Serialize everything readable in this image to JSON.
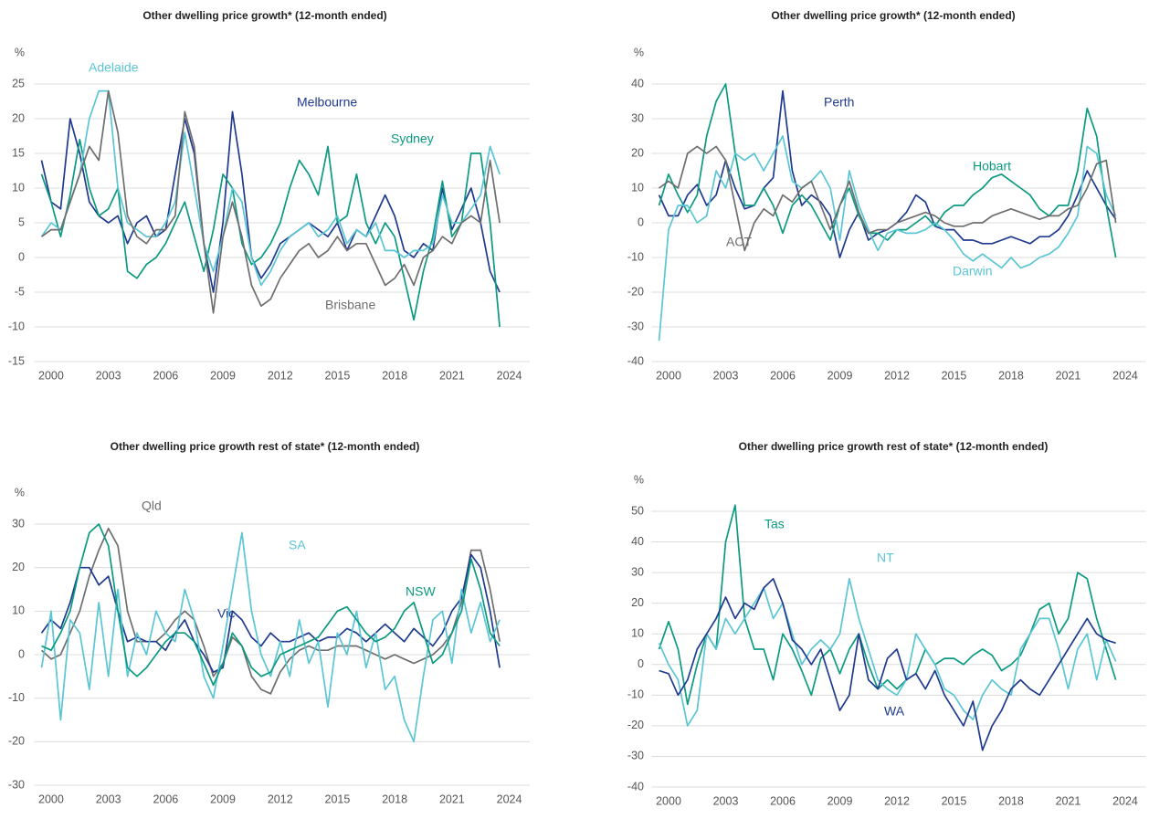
{
  "chart_data": [
    {
      "type": "line",
      "title": "Other dwelling price growth* (12-month ended)",
      "y_unit": "%",
      "x": [
        1999.5,
        2000,
        2000.5,
        2001,
        2001.5,
        2002,
        2002.5,
        2003,
        2003.5,
        2004,
        2004.5,
        2005,
        2005.5,
        2006,
        2006.5,
        2007,
        2007.5,
        2008,
        2008.5,
        2009,
        2009.5,
        2010,
        2010.5,
        2011,
        2011.5,
        2012,
        2012.5,
        2013,
        2013.5,
        2014,
        2014.5,
        2015,
        2015.5,
        2016,
        2016.5,
        2017,
        2017.5,
        2018,
        2018.5,
        2019,
        2019.5,
        2020,
        2020.5,
        2021,
        2021.5,
        2022,
        2022.5,
        2023,
        2023.5
      ],
      "xlim": [
        1999.5,
        2024.5
      ],
      "xticks": [
        2000,
        2003,
        2006,
        2009,
        2012,
        2015,
        2018,
        2021,
        2024
      ],
      "ylim": [
        -15,
        25
      ],
      "yticks": [
        -15,
        -10,
        -5,
        0,
        5,
        10,
        15,
        20,
        25
      ],
      "grid": true,
      "series": [
        {
          "name": "Melbourne",
          "color": "#1f3a8f",
          "values": [
            14,
            8,
            7,
            20,
            15,
            8,
            6,
            5,
            6,
            2,
            5,
            6,
            3,
            4,
            12,
            20,
            15,
            2,
            -5,
            5,
            21,
            12,
            0,
            -3,
            -1,
            2,
            3,
            4,
            5,
            4,
            3,
            5,
            1,
            4,
            3,
            6,
            9,
            6,
            1,
            0,
            2,
            1,
            10,
            4,
            7,
            10,
            5,
            -2,
            -5
          ]
        },
        {
          "name": "Sydney",
          "color": "#0b9a80",
          "values": [
            12,
            8,
            3,
            9,
            17,
            10,
            6,
            7,
            10,
            -2,
            -3,
            -1,
            0,
            2,
            5,
            8,
            3,
            -2,
            4,
            12,
            10,
            2,
            -1,
            0,
            2,
            5,
            10,
            14,
            12,
            9,
            16,
            5,
            6,
            12,
            5,
            2,
            5,
            3,
            -3,
            -9,
            -2,
            3,
            11,
            3,
            5,
            15,
            15,
            5,
            -10
          ]
        },
        {
          "name": "Adelaide",
          "color": "#5ac5d4",
          "values": [
            3,
            5,
            4,
            8,
            12,
            20,
            24,
            24,
            10,
            5,
            4,
            3,
            3,
            5,
            8,
            18,
            10,
            2,
            -2,
            3,
            10,
            8,
            0,
            -4,
            -2,
            1,
            3,
            4,
            5,
            3,
            4,
            6,
            2,
            4,
            3,
            5,
            1,
            1,
            0,
            1,
            1,
            2,
            9,
            5,
            5,
            7,
            9,
            16,
            12
          ]
        },
        {
          "name": "Brisbane",
          "color": "#6e6e6e",
          "values": [
            3,
            4,
            4,
            8,
            12,
            16,
            14,
            24,
            18,
            6,
            3,
            2,
            4,
            4,
            6,
            21,
            16,
            2,
            -8,
            3,
            8,
            3,
            -4,
            -7,
            -6,
            -3,
            -1,
            1,
            2,
            0,
            1,
            3,
            1,
            2,
            2,
            -1,
            -4,
            -3,
            -1,
            -4,
            0,
            1,
            3,
            2,
            5,
            6,
            5,
            14,
            5
          ]
        }
      ]
    },
    {
      "type": "line",
      "title": "Other dwelling price growth* (12-month ended)",
      "y_unit": "%",
      "x": [
        1999.5,
        2000,
        2000.5,
        2001,
        2001.5,
        2002,
        2002.5,
        2003,
        2003.5,
        2004,
        2004.5,
        2005,
        2005.5,
        2006,
        2006.5,
        2007,
        2007.5,
        2008,
        2008.5,
        2009,
        2009.5,
        2010,
        2010.5,
        2011,
        2011.5,
        2012,
        2012.5,
        2013,
        2013.5,
        2014,
        2014.5,
        2015,
        2015.5,
        2016,
        2016.5,
        2017,
        2017.5,
        2018,
        2018.5,
        2019,
        2019.5,
        2020,
        2020.5,
        2021,
        2021.5,
        2022,
        2022.5,
        2023,
        2023.5
      ],
      "xlim": [
        1999.5,
        2024.5
      ],
      "xticks": [
        2000,
        2003,
        2006,
        2009,
        2012,
        2015,
        2018,
        2021,
        2024
      ],
      "ylim": [
        -40,
        40
      ],
      "yticks": [
        -40,
        -30,
        -20,
        -10,
        0,
        10,
        20,
        30,
        40
      ],
      "grid": true,
      "series": [
        {
          "name": "Perth",
          "color": "#1f3a8f",
          "values": [
            8,
            2,
            2,
            8,
            11,
            5,
            8,
            18,
            10,
            4,
            5,
            10,
            13,
            38,
            15,
            5,
            8,
            6,
            2,
            -10,
            -2,
            3,
            -5,
            -3,
            -2,
            0,
            3,
            8,
            6,
            -1,
            -2,
            -2,
            -5,
            -5,
            -6,
            -6,
            -5,
            -4,
            -5,
            -6,
            -4,
            -4,
            -2,
            2,
            8,
            15,
            10,
            5,
            1
          ]
        },
        {
          "name": "Hobart",
          "color": "#0b9a80",
          "values": [
            5,
            14,
            8,
            3,
            8,
            25,
            35,
            40,
            20,
            5,
            5,
            10,
            5,
            -3,
            5,
            8,
            5,
            0,
            -5,
            5,
            10,
            2,
            -3,
            -3,
            -5,
            -2,
            -2,
            0,
            2,
            -1,
            3,
            5,
            5,
            8,
            10,
            13,
            14,
            12,
            10,
            8,
            4,
            2,
            5,
            5,
            15,
            33,
            25,
            5,
            -10
          ]
        },
        {
          "name": "Darwin",
          "color": "#5ac5d4",
          "values": [
            -34,
            -2,
            5,
            5,
            0,
            2,
            15,
            10,
            20,
            18,
            20,
            15,
            20,
            25,
            12,
            10,
            12,
            15,
            10,
            -5,
            15,
            5,
            -2,
            -8,
            -3,
            -2,
            -3,
            -3,
            -2,
            0,
            -2,
            -5,
            -9,
            -11,
            -9,
            -11,
            -13,
            -10,
            -13,
            -12,
            -10,
            -9,
            -7,
            -3,
            2,
            22,
            20,
            8,
            2
          ]
        },
        {
          "name": "ACT",
          "color": "#6e6e6e",
          "values": [
            10,
            12,
            10,
            20,
            22,
            20,
            22,
            18,
            5,
            -8,
            0,
            4,
            2,
            8,
            6,
            10,
            12,
            5,
            -2,
            5,
            12,
            3,
            -3,
            -2,
            -2,
            0,
            1,
            2,
            3,
            2,
            0,
            -1,
            -1,
            0,
            0,
            2,
            3,
            4,
            3,
            2,
            1,
            2,
            2,
            4,
            5,
            10,
            17,
            18,
            0
          ]
        }
      ]
    },
    {
      "type": "line",
      "title": "Other dwelling price growth rest of state* (12-month ended)",
      "y_unit": "%",
      "x": [
        1999.5,
        2000,
        2000.5,
        2001,
        2001.5,
        2002,
        2002.5,
        2003,
        2003.5,
        2004,
        2004.5,
        2005,
        2005.5,
        2006,
        2006.5,
        2007,
        2007.5,
        2008,
        2008.5,
        2009,
        2009.5,
        2010,
        2010.5,
        2011,
        2011.5,
        2012,
        2012.5,
        2013,
        2013.5,
        2014,
        2014.5,
        2015,
        2015.5,
        2016,
        2016.5,
        2017,
        2017.5,
        2018,
        2018.5,
        2019,
        2019.5,
        2020,
        2020.5,
        2021,
        2021.5,
        2022,
        2022.5,
        2023,
        2023.5
      ],
      "xlim": [
        1999.5,
        2024.5
      ],
      "xticks": [
        2000,
        2003,
        2006,
        2009,
        2012,
        2015,
        2018,
        2021,
        2024
      ],
      "ylim": [
        -30,
        30
      ],
      "yticks": [
        -30,
        -20,
        -10,
        0,
        10,
        20,
        30
      ],
      "grid": true,
      "series": [
        {
          "name": "Qld",
          "color": "#6e6e6e",
          "values": [
            1,
            -1,
            0,
            5,
            10,
            18,
            24,
            29,
            25,
            10,
            3,
            3,
            3,
            5,
            8,
            10,
            8,
            2,
            -5,
            -2,
            4,
            2,
            -5,
            -8,
            -9,
            -4,
            -1,
            1,
            2,
            1,
            1,
            2,
            2,
            2,
            1,
            0,
            -1,
            0,
            -1,
            -2,
            -1,
            0,
            2,
            5,
            12,
            24,
            24,
            15,
            3
          ]
        },
        {
          "name": "Vic",
          "color": "#1f3a8f",
          "values": [
            5,
            8,
            6,
            12,
            20,
            20,
            16,
            18,
            10,
            3,
            4,
            3,
            3,
            1,
            5,
            8,
            3,
            0,
            -4,
            -3,
            10,
            8,
            4,
            2,
            5,
            3,
            3,
            4,
            5,
            3,
            4,
            4,
            6,
            5,
            3,
            5,
            7,
            5,
            3,
            6,
            4,
            2,
            5,
            10,
            13,
            23,
            20,
            10,
            -3
          ]
        },
        {
          "name": "SA",
          "color": "#5ac5d4",
          "values": [
            -3,
            10,
            -15,
            8,
            5,
            -8,
            12,
            -5,
            15,
            -5,
            5,
            0,
            10,
            5,
            3,
            15,
            8,
            -5,
            -10,
            2,
            15,
            28,
            10,
            0,
            -5,
            3,
            -5,
            8,
            -2,
            3,
            -12,
            5,
            0,
            10,
            -3,
            5,
            -8,
            -5,
            -15,
            -20,
            -5,
            8,
            10,
            -2,
            15,
            5,
            12,
            3,
            8
          ]
        },
        {
          "name": "NSW",
          "color": "#0b9a80",
          "values": [
            2,
            1,
            5,
            10,
            20,
            28,
            30,
            25,
            10,
            -3,
            -5,
            -3,
            0,
            3,
            5,
            5,
            3,
            -2,
            -7,
            -2,
            5,
            2,
            -3,
            -5,
            -4,
            0,
            1,
            2,
            3,
            4,
            7,
            10,
            11,
            8,
            5,
            3,
            4,
            6,
            10,
            12,
            5,
            -2,
            0,
            5,
            10,
            22,
            15,
            5,
            2
          ]
        }
      ]
    },
    {
      "type": "line",
      "title": "Other dwelling price growth rest of state* (12-month ended)",
      "y_unit": "%",
      "x": [
        1999.5,
        2000,
        2000.5,
        2001,
        2001.5,
        2002,
        2002.5,
        2003,
        2003.5,
        2004,
        2004.5,
        2005,
        2005.5,
        2006,
        2006.5,
        2007,
        2007.5,
        2008,
        2008.5,
        2009,
        2009.5,
        2010,
        2010.5,
        2011,
        2011.5,
        2012,
        2012.5,
        2013,
        2013.5,
        2014,
        2014.5,
        2015,
        2015.5,
        2016,
        2016.5,
        2017,
        2017.5,
        2018,
        2018.5,
        2019,
        2019.5,
        2020,
        2020.5,
        2021,
        2021.5,
        2022,
        2022.5,
        2023,
        2023.5
      ],
      "xlim": [
        1999.5,
        2024.5
      ],
      "xticks": [
        2000,
        2003,
        2006,
        2009,
        2012,
        2015,
        2018,
        2021,
        2024
      ],
      "ylim": [
        -40,
        50
      ],
      "yticks": [
        -40,
        -30,
        -20,
        -10,
        0,
        10,
        20,
        30,
        40,
        50
      ],
      "grid": true,
      "series": [
        {
          "name": "Tas",
          "color": "#0b9a80",
          "values": [
            5,
            14,
            5,
            -13,
            0,
            10,
            5,
            40,
            52,
            15,
            5,
            5,
            -5,
            10,
            5,
            -2,
            -10,
            2,
            5,
            -3,
            5,
            10,
            0,
            -8,
            -5,
            -8,
            -5,
            -3,
            5,
            0,
            2,
            2,
            0,
            3,
            5,
            3,
            -2,
            0,
            3,
            10,
            18,
            20,
            10,
            15,
            30,
            28,
            15,
            5,
            -5
          ]
        },
        {
          "name": "NT",
          "color": "#5ac5d4",
          "values": [
            7,
            0,
            -5,
            -20,
            -15,
            10,
            5,
            15,
            10,
            15,
            20,
            25,
            15,
            20,
            10,
            0,
            5,
            8,
            5,
            10,
            28,
            15,
            5,
            -5,
            -8,
            -10,
            -5,
            10,
            5,
            0,
            -8,
            -10,
            -15,
            -18,
            -10,
            -5,
            -8,
            -10,
            5,
            10,
            15,
            15,
            5,
            -8,
            5,
            10,
            -5,
            8,
            1
          ]
        },
        {
          "name": "WA",
          "color": "#1f3a8f",
          "values": [
            -2,
            -3,
            -10,
            -5,
            5,
            10,
            15,
            22,
            15,
            20,
            18,
            25,
            28,
            20,
            8,
            5,
            0,
            5,
            -5,
            -15,
            -10,
            10,
            -5,
            -8,
            2,
            5,
            -5,
            -3,
            -8,
            -2,
            -10,
            -15,
            -20,
            -12,
            -28,
            -20,
            -15,
            -8,
            -5,
            -8,
            -10,
            -5,
            0,
            5,
            10,
            15,
            10,
            8,
            7
          ]
        }
      ]
    }
  ]
}
